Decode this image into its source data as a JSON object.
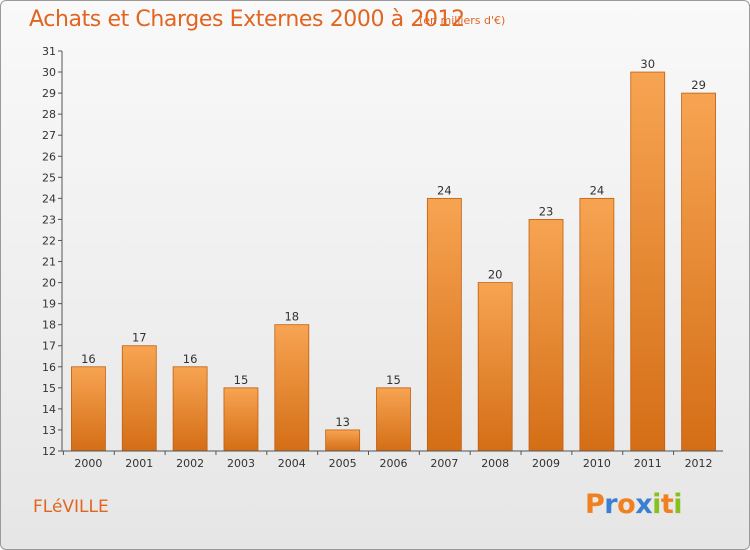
{
  "chart_data": {
    "type": "bar",
    "title": "Achats et Charges Externes 2000 à 2012",
    "subtitle": "(en milliers d'€)",
    "categories": [
      "2000",
      "2001",
      "2002",
      "2003",
      "2004",
      "2005",
      "2006",
      "2007",
      "2008",
      "2009",
      "2010",
      "2011",
      "2012"
    ],
    "values": [
      16,
      17,
      16,
      15,
      18,
      13,
      15,
      24,
      20,
      23,
      24,
      30,
      29
    ],
    "ylim": [
      12,
      31
    ],
    "yticks": [
      12,
      13,
      14,
      15,
      16,
      17,
      18,
      19,
      20,
      21,
      22,
      23,
      24,
      25,
      26,
      27,
      28,
      29,
      30,
      31
    ],
    "xlabel": "",
    "ylabel": "",
    "grid": false,
    "bar_color_top": "#f7a452",
    "bar_color_bottom": "#d46e16",
    "bar_edge_color": "#c05e10"
  },
  "commune": "FLéVILLE",
  "logo": {
    "letters": [
      "P",
      "r",
      "o",
      "x",
      "i",
      "t",
      "i"
    ],
    "colors": [
      "#f08020",
      "#3a7fd0",
      "#f08020",
      "#3a7fd0",
      "#88c020",
      "#f08020",
      "#88c020"
    ]
  },
  "colors": {
    "title": "#e06520",
    "axis": "#333333"
  }
}
